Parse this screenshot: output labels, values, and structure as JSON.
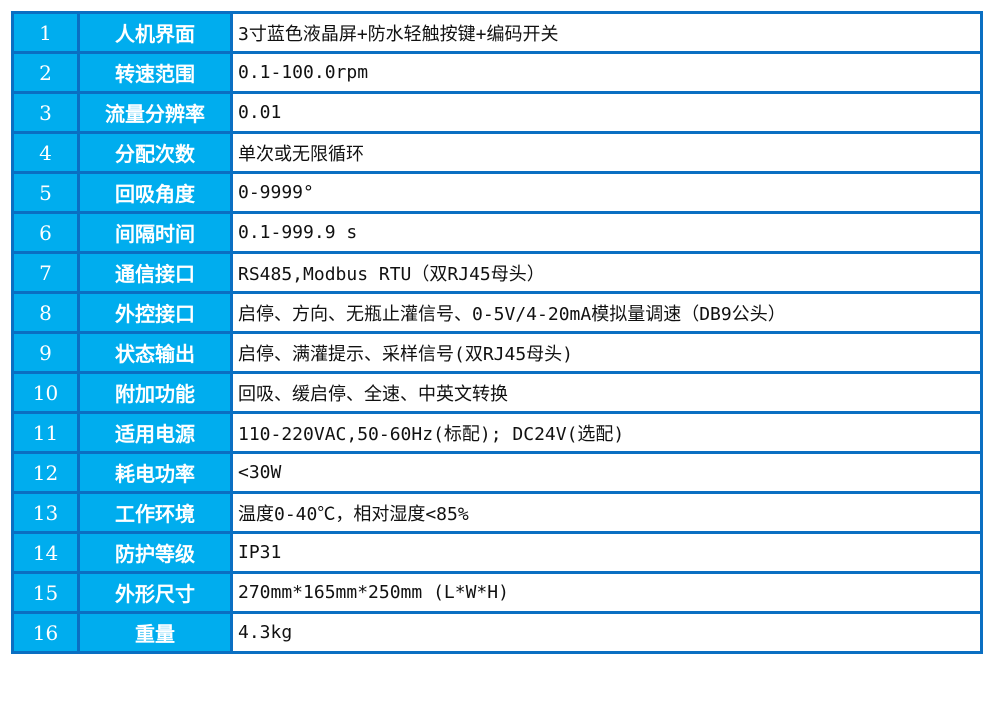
{
  "colors": {
    "header_cell": "#00adee",
    "border": "#0a6fc2",
    "value_cell": "#ffffff"
  },
  "rows": [
    {
      "num": "1",
      "label": "人机界面",
      "value": "3寸蓝色液晶屏+防水轻触按键+编码开关"
    },
    {
      "num": "2",
      "label": "转速范围",
      "value": "0.1-100.0rpm"
    },
    {
      "num": "3",
      "label": "流量分辨率",
      "value": "0.01"
    },
    {
      "num": "4",
      "label": "分配次数",
      "value": "单次或无限循环"
    },
    {
      "num": "5",
      "label": "回吸角度",
      "value": "0-9999°"
    },
    {
      "num": "6",
      "label": "间隔时间",
      "value": "0.1-999.9 s"
    },
    {
      "num": "7",
      "label": "通信接口",
      "value": "RS485,Modbus RTU（双RJ45母头）"
    },
    {
      "num": "8",
      "label": "外控接口",
      "value": "启停、方向、无瓶止灌信号、0-5V/4-20mA模拟量调速（DB9公头）"
    },
    {
      "num": "9",
      "label": "状态输出",
      "value": "启停、满灌提示、采样信号(双RJ45母头)"
    },
    {
      "num": "10",
      "label": "附加功能",
      "value": "回吸、缓启停、全速、中英文转换"
    },
    {
      "num": "11",
      "label": "适用电源",
      "value": "110-220VAC,50-60Hz(标配); DC24V(选配)"
    },
    {
      "num": "12",
      "label": "耗电功率",
      "value": "<30W"
    },
    {
      "num": "13",
      "label": "工作环境",
      "value": "温度0-40℃，相对湿度<85%"
    },
    {
      "num": "14",
      "label": "防护等级",
      "value": "IP31"
    },
    {
      "num": "15",
      "label": "外形尺寸",
      "value": "270mm*165mm*250mm (L*W*H)"
    },
    {
      "num": "16",
      "label": "重量",
      "value": "4.3kg"
    }
  ]
}
